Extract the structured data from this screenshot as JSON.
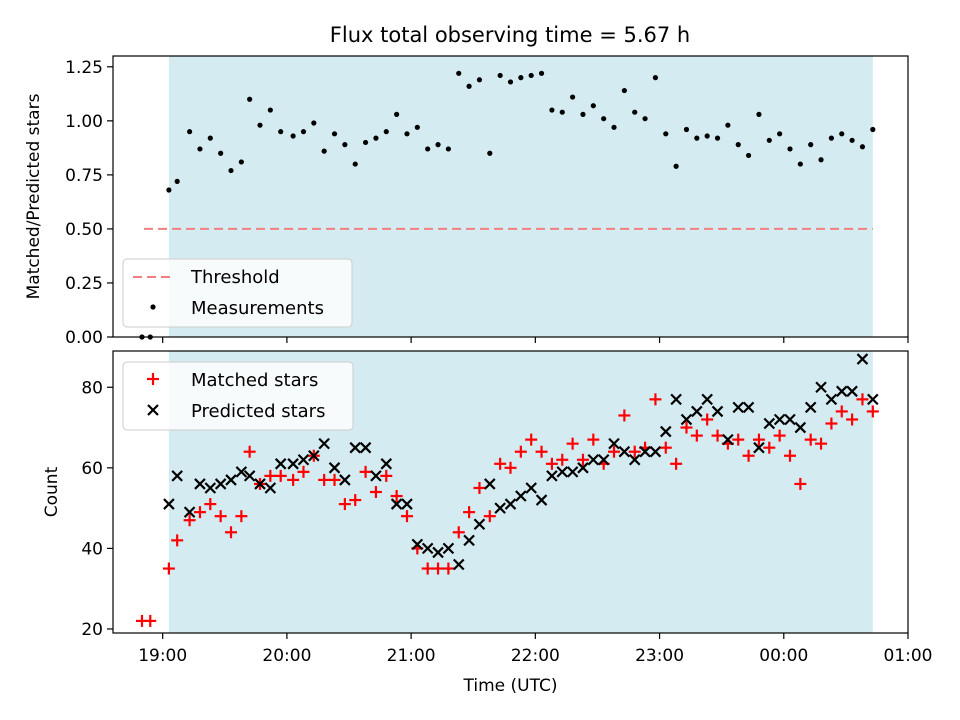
{
  "title": "Flux total observing time = 5.67 h",
  "xlabel": "Time (UTC)",
  "x_ticks": [
    "19:00",
    "20:00",
    "21:00",
    "22:00",
    "23:00",
    "00:00",
    "01:00"
  ],
  "colors": {
    "observing_span": "#d4ebf1",
    "threshold": "#f08080",
    "measurements": "#000000",
    "matched": "#ff0000",
    "predicted": "#000000"
  },
  "chart_data": [
    {
      "type": "scatter",
      "ylabel": "Matched/Predicted stars",
      "xlim": [
        "18:36",
        "01:00"
      ],
      "ylim": [
        0,
        1.3
      ],
      "y_ticks": [
        "0.00",
        "0.25",
        "0.50",
        "0.75",
        "1.00",
        "1.25"
      ],
      "observing_span": [
        "19:03",
        "00:43"
      ],
      "legend_position": "lower-left",
      "threshold": {
        "name": "Threshold",
        "y": 0.5,
        "x_range": [
          "18:51",
          "00:43"
        ],
        "style": "dashed"
      },
      "series": [
        {
          "name": "Measurements",
          "x": [
            "18:50",
            "18:54",
            "19:03",
            "19:07",
            "19:13",
            "19:18",
            "19:23",
            "19:28",
            "19:33",
            "19:38",
            "19:42",
            "19:47",
            "19:52",
            "19:57",
            "20:03",
            "20:08",
            "20:13",
            "20:18",
            "20:23",
            "20:28",
            "20:33",
            "20:38",
            "20:43",
            "20:48",
            "20:53",
            "20:58",
            "21:03",
            "21:08",
            "21:13",
            "21:18",
            "21:23",
            "21:28",
            "21:33",
            "21:38",
            "21:43",
            "21:48",
            "21:53",
            "21:58",
            "22:03",
            "22:08",
            "22:13",
            "22:18",
            "22:23",
            "22:28",
            "22:33",
            "22:38",
            "22:43",
            "22:48",
            "22:53",
            "22:58",
            "23:03",
            "23:08",
            "23:13",
            "23:18",
            "23:23",
            "23:28",
            "23:33",
            "23:38",
            "23:43",
            "23:48",
            "23:53",
            "23:58",
            "00:03",
            "00:08",
            "00:13",
            "00:18",
            "00:23",
            "00:28",
            "00:33",
            "00:38",
            "00:43"
          ],
          "y": [
            0.0,
            0.0,
            0.68,
            0.72,
            0.95,
            0.87,
            0.92,
            0.85,
            0.77,
            0.81,
            1.1,
            0.98,
            1.05,
            0.95,
            0.93,
            0.95,
            0.99,
            0.86,
            0.94,
            0.89,
            0.8,
            0.9,
            0.92,
            0.95,
            1.03,
            0.94,
            0.97,
            0.87,
            0.89,
            0.87,
            1.22,
            1.16,
            1.19,
            0.85,
            1.21,
            1.18,
            1.2,
            1.21,
            1.22,
            1.05,
            1.04,
            1.11,
            1.03,
            1.07,
            1.01,
            0.97,
            1.14,
            1.04,
            1.01,
            1.2,
            0.94,
            0.79,
            0.96,
            0.92,
            0.93,
            0.92,
            0.98,
            0.89,
            0.84,
            1.03,
            0.91,
            0.94,
            0.87,
            0.8,
            0.89,
            0.82,
            0.92,
            0.94,
            0.91,
            0.88,
            0.96
          ]
        }
      ]
    },
    {
      "type": "scatter",
      "ylabel": "Count",
      "xlim": [
        "18:36",
        "01:00"
      ],
      "ylim": [
        19,
        89
      ],
      "y_ticks": [
        "20",
        "40",
        "60",
        "80"
      ],
      "observing_span": [
        "19:03",
        "00:43"
      ],
      "legend_position": "upper-left",
      "series": [
        {
          "name": "Matched stars",
          "marker": "plus",
          "x": [
            "18:50",
            "18:54",
            "19:03",
            "19:07",
            "19:13",
            "19:18",
            "19:23",
            "19:28",
            "19:33",
            "19:38",
            "19:42",
            "19:47",
            "19:52",
            "19:57",
            "20:03",
            "20:08",
            "20:13",
            "20:18",
            "20:23",
            "20:28",
            "20:33",
            "20:38",
            "20:43",
            "20:48",
            "20:53",
            "20:58",
            "21:03",
            "21:08",
            "21:13",
            "21:18",
            "21:23",
            "21:28",
            "21:33",
            "21:38",
            "21:43",
            "21:48",
            "21:53",
            "21:58",
            "22:03",
            "22:08",
            "22:13",
            "22:18",
            "22:23",
            "22:28",
            "22:33",
            "22:38",
            "22:43",
            "22:48",
            "22:53",
            "22:58",
            "23:03",
            "23:08",
            "23:13",
            "23:18",
            "23:23",
            "23:28",
            "23:33",
            "23:38",
            "23:43",
            "23:48",
            "23:53",
            "23:58",
            "00:03",
            "00:08",
            "00:13",
            "00:18",
            "00:23",
            "00:28",
            "00:33",
            "00:38",
            "00:43"
          ],
          "y": [
            22,
            22,
            35,
            42,
            47,
            49,
            51,
            48,
            44,
            48,
            64,
            56,
            58,
            58,
            57,
            59,
            63,
            57,
            57,
            51,
            52,
            59,
            54,
            58,
            53,
            48,
            40,
            35,
            35,
            35,
            44,
            49,
            55,
            48,
            61,
            60,
            64,
            67,
            64,
            61,
            62,
            66,
            62,
            67,
            61,
            64,
            73,
            64,
            65,
            77,
            65,
            61,
            70,
            68,
            72,
            68,
            66,
            67,
            63,
            67,
            65,
            68,
            63,
            56,
            67,
            66,
            71,
            74,
            72,
            77,
            74
          ]
        },
        {
          "name": "Predicted stars",
          "marker": "x",
          "x": [
            "19:03",
            "19:07",
            "19:13",
            "19:18",
            "19:23",
            "19:28",
            "19:33",
            "19:38",
            "19:42",
            "19:47",
            "19:52",
            "19:57",
            "20:03",
            "20:08",
            "20:13",
            "20:18",
            "20:23",
            "20:28",
            "20:33",
            "20:38",
            "20:43",
            "20:48",
            "20:53",
            "20:58",
            "21:03",
            "21:08",
            "21:13",
            "21:18",
            "21:23",
            "21:28",
            "21:33",
            "21:38",
            "21:43",
            "21:48",
            "21:53",
            "21:58",
            "22:03",
            "22:08",
            "22:13",
            "22:18",
            "22:23",
            "22:28",
            "22:33",
            "22:38",
            "22:43",
            "22:48",
            "22:53",
            "22:58",
            "23:03",
            "23:08",
            "23:13",
            "23:18",
            "23:23",
            "23:28",
            "23:33",
            "23:38",
            "23:43",
            "23:48",
            "23:53",
            "23:58",
            "00:03",
            "00:08",
            "00:13",
            "00:18",
            "00:23",
            "00:28",
            "00:33",
            "00:38",
            "00:43"
          ],
          "y": [
            51,
            58,
            49,
            56,
            55,
            56,
            57,
            59,
            58,
            56,
            55,
            61,
            61,
            62,
            63,
            66,
            60,
            57,
            65,
            65,
            58,
            61,
            51,
            51,
            41,
            40,
            39,
            40,
            36,
            42,
            46,
            56,
            50,
            51,
            53,
            55,
            52,
            58,
            59,
            59,
            60,
            62,
            62,
            66,
            64,
            62,
            64,
            64,
            69,
            77,
            72,
            74,
            77,
            74,
            67,
            75,
            75,
            65,
            71,
            72,
            72,
            70,
            75,
            80,
            77,
            79,
            79,
            87,
            77
          ]
        }
      ]
    }
  ]
}
